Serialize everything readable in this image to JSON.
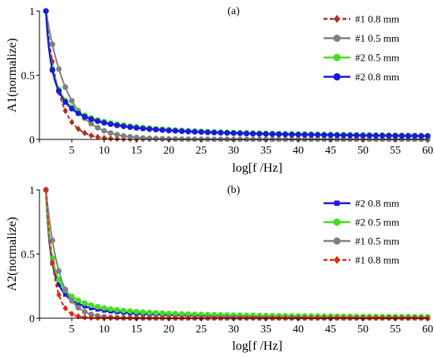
{
  "chart_data": [
    {
      "type": "line",
      "panel_label": "(a)",
      "xlabel": "log[f /Hz]",
      "ylabel": "A1(normalize)",
      "xlim": [
        0,
        60
      ],
      "ylim": [
        0,
        1
      ],
      "xticks": [
        0,
        5,
        10,
        15,
        20,
        25,
        30,
        35,
        40,
        45,
        50,
        55,
        60
      ],
      "yticks": [
        0,
        0.5,
        1
      ],
      "ytick_labels": [
        "0",
        "0.5",
        "1"
      ],
      "legend_placement": "top-right",
      "series": [
        {
          "name": "#1  0.8 mm",
          "color": "#a9321f",
          "marker": "diamond",
          "dashed": true,
          "decay": "fast",
          "k": 0.5
        },
        {
          "name": "#1  0.5 mm",
          "color": "#808080",
          "marker": "circle",
          "dashed": false,
          "decay": "medium",
          "k": 0.3
        },
        {
          "name": "#2  0.5 mm",
          "color": "#44dd22",
          "marker": "circle",
          "dashed": false,
          "decay": "slow",
          "p": 0.86
        },
        {
          "name": "#2  0.8 mm",
          "color": "#1a1adc",
          "marker": "circle",
          "dashed": false,
          "decay": "slow",
          "p": 0.89
        }
      ]
    },
    {
      "type": "line",
      "panel_label": "(b)",
      "xlabel": "log[f /Hz]",
      "ylabel": "A2(normalize)",
      "xlim": [
        0,
        60
      ],
      "ylim": [
        0,
        1
      ],
      "xticks": [
        0,
        5,
        10,
        15,
        20,
        25,
        30,
        35,
        40,
        45,
        50,
        55,
        60
      ],
      "yticks": [
        0,
        0.5,
        1
      ],
      "ytick_labels": [
        "0",
        "0.5",
        "1"
      ],
      "legend_placement": "top-right",
      "series": [
        {
          "name": "#2  0.8 mm",
          "color": "#1a1adc",
          "marker": "square",
          "dashed": false,
          "decay": "slow",
          "p": 1.22
        },
        {
          "name": "#2  0.5 mm",
          "color": "#44dd22",
          "marker": "circle",
          "dashed": false,
          "decay": "slow",
          "p": 1.1
        },
        {
          "name": "#1  0.5 mm",
          "color": "#808080",
          "marker": "circle",
          "dashed": false,
          "decay": "medium",
          "k": 0.5
        },
        {
          "name": "#1  0.8 mm",
          "color": "#e02a10",
          "marker": "diamond",
          "dashed": true,
          "decay": "fast",
          "k": 0.85
        }
      ]
    }
  ]
}
